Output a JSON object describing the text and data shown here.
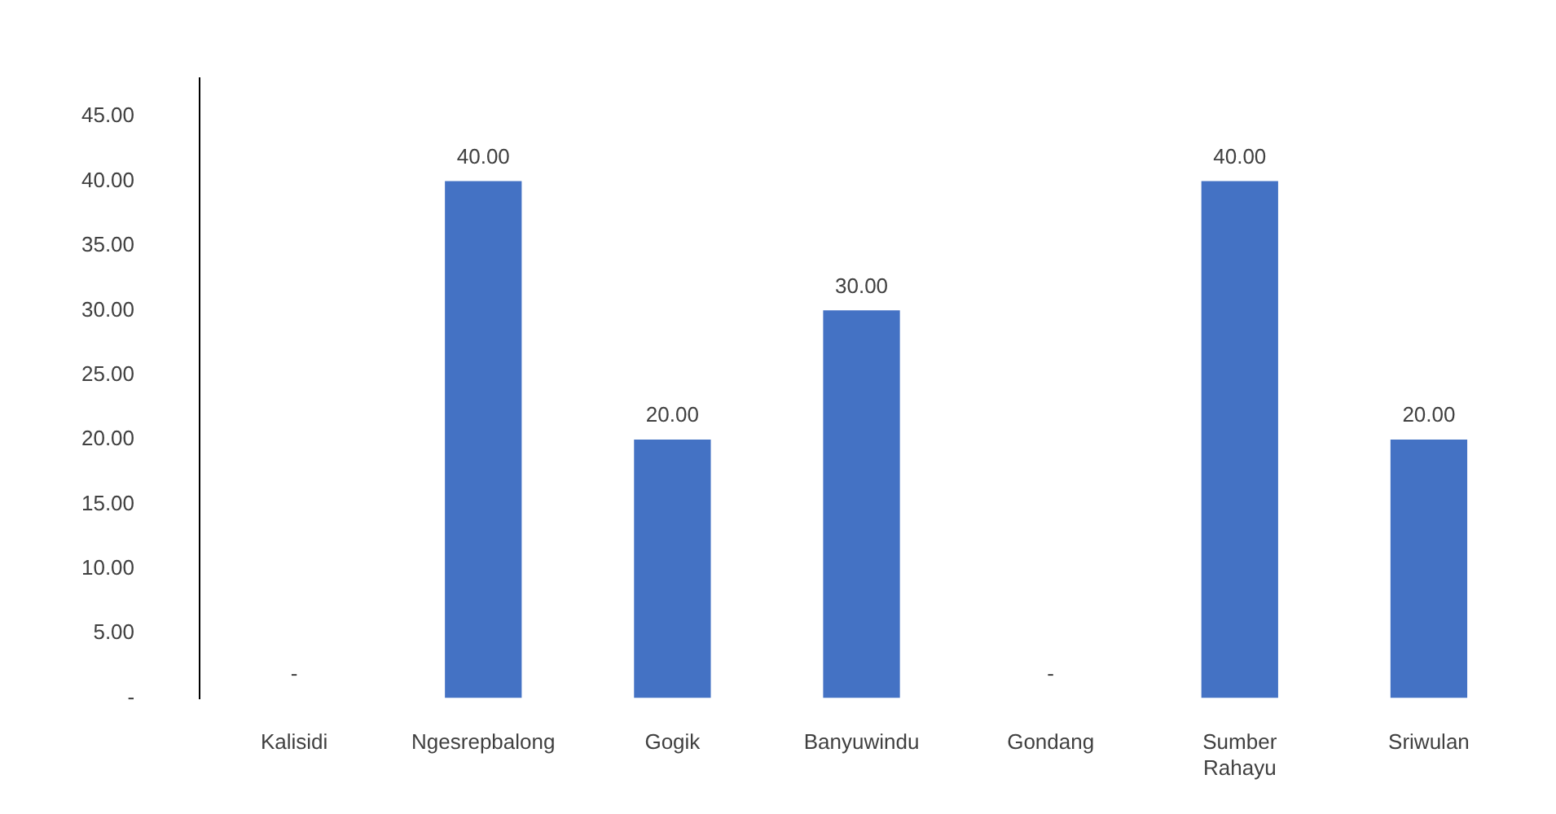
{
  "chart_data": {
    "type": "bar",
    "categories": [
      "Kalisidi",
      "Ngesrepbalong",
      "Gogik",
      "Banyuwindu",
      "Gondang",
      "Sumber Rahayu",
      "Sriwulan"
    ],
    "values": [
      0,
      40,
      20,
      30,
      0,
      40,
      20
    ],
    "value_labels": [
      "-",
      "40.00",
      "20.00",
      "30.00",
      "-",
      "40.00",
      "20.00"
    ],
    "color": "#4472c4",
    "ylim": [
      0,
      48
    ],
    "yticks": [
      {
        "value": 0,
        "label": "-"
      },
      {
        "value": 5,
        "label": "5.00"
      },
      {
        "value": 10,
        "label": "10.00"
      },
      {
        "value": 15,
        "label": "15.00"
      },
      {
        "value": 20,
        "label": "20.00"
      },
      {
        "value": 25,
        "label": "25.00"
      },
      {
        "value": 30,
        "label": "30.00"
      },
      {
        "value": 35,
        "label": "35.00"
      },
      {
        "value": 40,
        "label": "40.00"
      },
      {
        "value": 45,
        "label": "45.00"
      }
    ],
    "grid": false,
    "legend": false
  }
}
